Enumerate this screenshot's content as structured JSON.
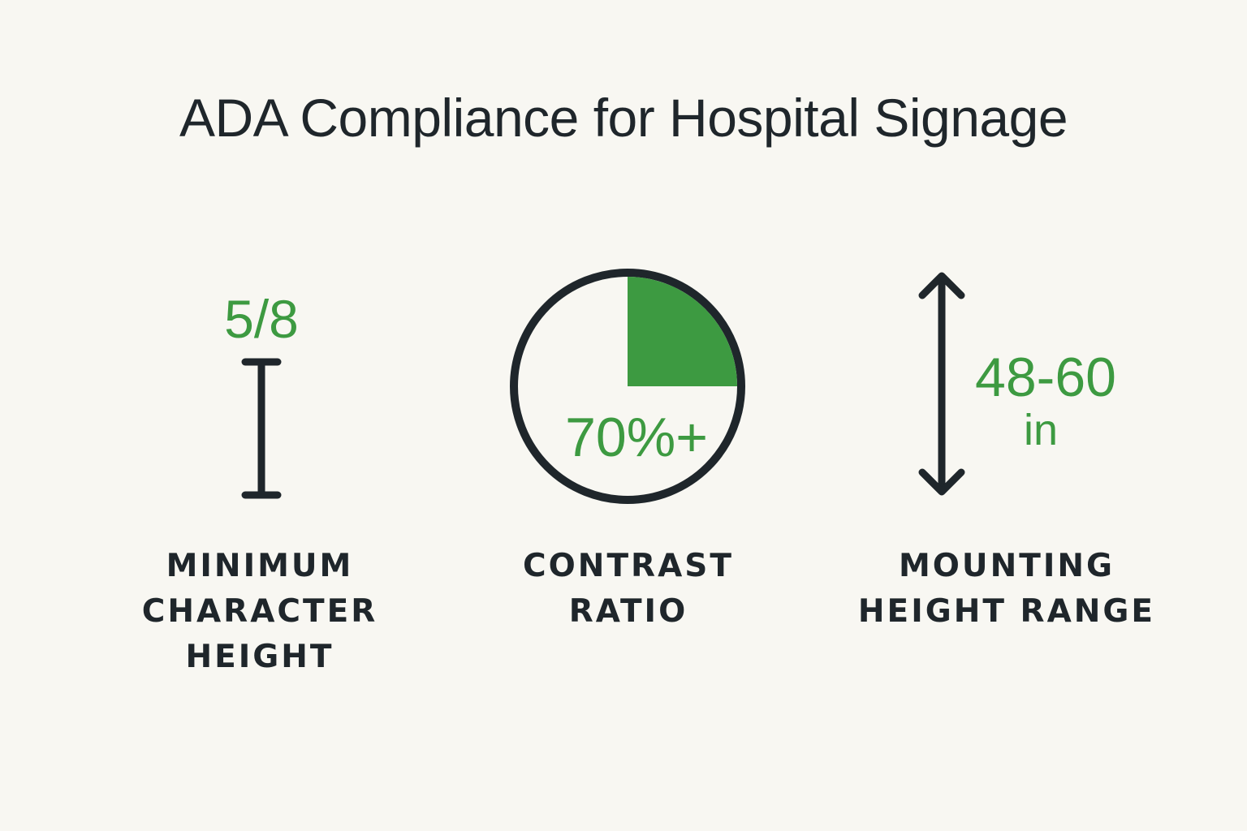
{
  "title": "ADA Compliance for Hospital Signage",
  "colors": {
    "background": "#f8f7f2",
    "text": "#1f262b",
    "accent_green": "#3d9a41"
  },
  "metrics": [
    {
      "id": "character-height",
      "value": "5/8",
      "icon": "height-bar-icon",
      "label_lines": [
        "MINIMUM",
        "CHARACTER",
        "HEIGHT"
      ]
    },
    {
      "id": "contrast",
      "value": "70%+",
      "icon": "contrast-pie-icon",
      "pie_fraction": 0.25,
      "label_lines": [
        "CONTRAST",
        "RATIO"
      ]
    },
    {
      "id": "mounting-height",
      "value": "48-60",
      "unit": "in",
      "icon": "double-arrow-vertical-icon",
      "label_lines": [
        "MOUNTING",
        "HEIGHT RANGE"
      ]
    }
  ]
}
